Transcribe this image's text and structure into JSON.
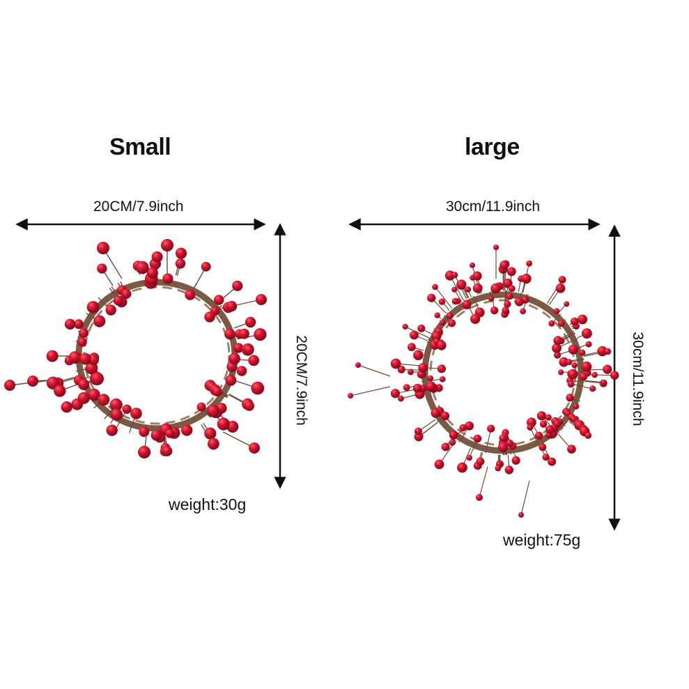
{
  "products": [
    {
      "size_label": "Small",
      "width_label": "20CM/7.9inch",
      "height_label": "20CM/7.9inch",
      "weight_label": "weight:30g"
    },
    {
      "size_label": "large",
      "width_label": "30cm/11.9inch",
      "height_label": "30cm/11.9inch",
      "weight_label": "weight:75g"
    }
  ],
  "colors": {
    "berry": "#c8102e",
    "berry_dark": "#8e0b1f",
    "vine": "#7a5a44",
    "arrow": "#111111"
  }
}
